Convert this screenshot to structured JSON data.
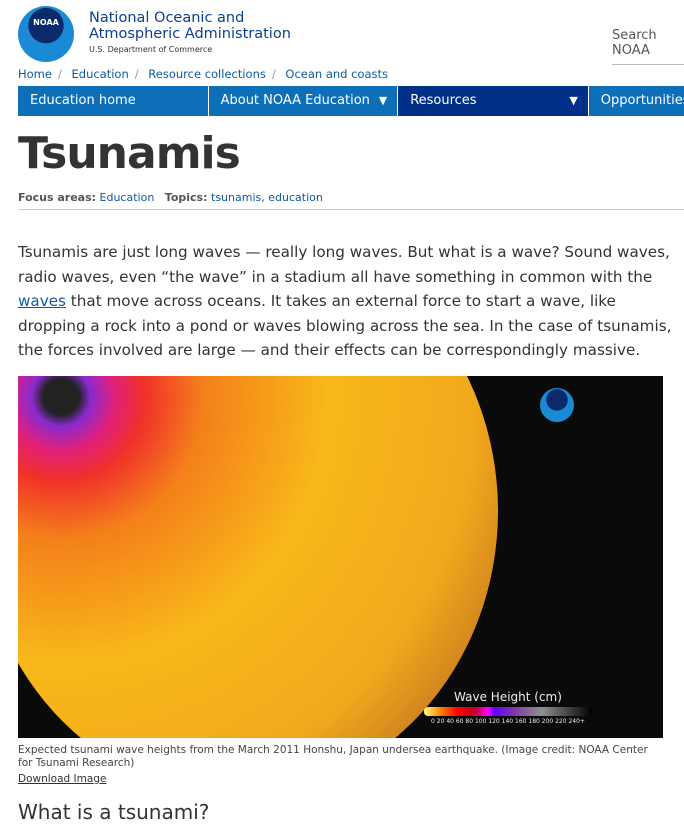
{
  "header": {
    "logo_text": "NOAA",
    "org_name": "National Oceanic and Atmospheric Administration",
    "dept": "U.S. Department of Commerce",
    "search_placeholder": "Search NOAA"
  },
  "breadcrumb": [
    "Home",
    "Education",
    "Resource collections",
    "Ocean and coasts"
  ],
  "nav": [
    {
      "label": "Education home"
    },
    {
      "label": "About NOAA Education",
      "arrow": "▼"
    },
    {
      "label": "Resources",
      "arrow": "▼"
    },
    {
      "label": "Opportunities"
    }
  ],
  "page": {
    "title": "Tsunamis",
    "focus_label": "Focus areas:",
    "focus_value": "Education",
    "topics_label": "Topics:",
    "topics_value": "tsunamis, education",
    "intro_1": "Tsunamis are just long waves — really long waves. But what is a wave? Sound waves, radio waves, even “the wave” in a stadium all have something in common with the ",
    "intro_link": "waves",
    "intro_2": " that move across oceans. It takes an external force to start a wave, like dropping a rock into a pond or waves blowing across the sea. In the case of tsunamis, the forces involved are large — and their effects can be correspondingly massive."
  },
  "figure": {
    "legend_title": "Wave Height (cm)",
    "legend_ticks": "0  20  40  60  80 100 120 140 160 180 200 220 240+",
    "caption": "Expected tsunami wave heights from the March 2011 Honshu, Japan undersea earthquake. (Image credit: NOAA Center for Tsunami Research)",
    "download": "Download Image"
  },
  "section_heading": "What is a tsunami?"
}
